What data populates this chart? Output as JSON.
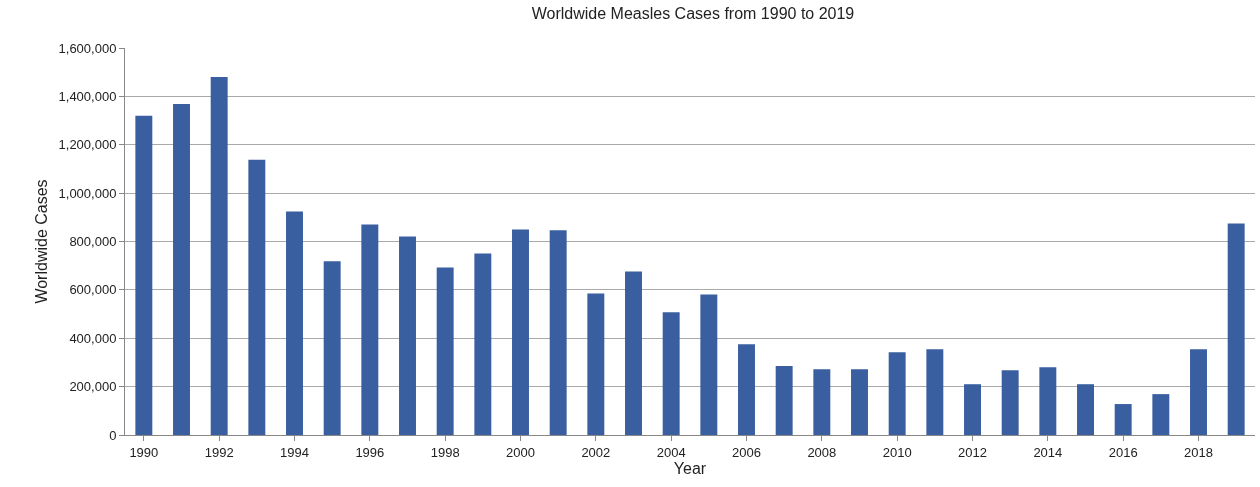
{
  "chart_data": {
    "type": "bar",
    "title": "Worldwide Measles Cases from 1990 to 2019",
    "xlabel": "Year",
    "ylabel": "Worldwide Cases",
    "x": [
      1990,
      1991,
      1992,
      1993,
      1994,
      1995,
      1996,
      1997,
      1998,
      1999,
      2000,
      2001,
      2002,
      2003,
      2004,
      2005,
      2006,
      2007,
      2008,
      2009,
      2010,
      2011,
      2012,
      2013,
      2014,
      2015,
      2016,
      2017,
      2018,
      2019
    ],
    "values": [
      1320000,
      1368000,
      1480000,
      1138000,
      924000,
      718000,
      870000,
      821000,
      693000,
      750000,
      850000,
      846000,
      585000,
      676000,
      507000,
      581000,
      375000,
      285000,
      272000,
      272000,
      342000,
      355000,
      210000,
      268000,
      280000,
      210000,
      128000,
      169000,
      355000,
      874000
    ],
    "color": "#3a5fa0",
    "xlim": [
      1989.5,
      2019.5
    ],
    "xticks": [
      1990,
      1992,
      1994,
      1996,
      1998,
      2000,
      2002,
      2004,
      2006,
      2008,
      2010,
      2012,
      2014,
      2016,
      2018
    ],
    "ylim": [
      0,
      1600000
    ],
    "yticks": [
      0,
      {
        "value": 200000,
        "label": "200,000"
      },
      {
        "value": 400000,
        "label": "400,000"
      },
      {
        "value": 600000,
        "label": "600,000"
      },
      {
        "value": 800000,
        "label": "800,000"
      },
      {
        "value": 1000000,
        "label": "1,000,000"
      },
      {
        "value": 1200000,
        "label": "1,200,000"
      },
      {
        "value": 1400000,
        "label": "1,400,000"
      },
      {
        "value": 1600000,
        "label": "1,600,000"
      }
    ],
    "grid": "y"
  }
}
